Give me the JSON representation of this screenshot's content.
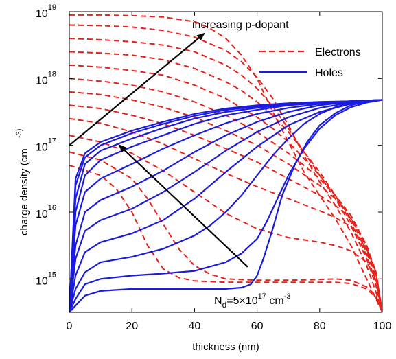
{
  "chart_data": {
    "type": "line",
    "xlabel": "thickness (nm)",
    "ylabel": "charge density (cm",
    "ylabel_exponent": "-3)",
    "xlim": [
      0,
      100
    ],
    "ylim_log10": [
      14.5,
      19
    ],
    "yscale": "log",
    "grid": false,
    "legend_position": "top-right",
    "x_ticks": [
      "0",
      "20",
      "40",
      "60",
      "80",
      "100"
    ],
    "y_ticks": [
      {
        "base": "10",
        "exp": "15",
        "value": 15
      },
      {
        "base": "10",
        "exp": "16",
        "value": 16
      },
      {
        "base": "10",
        "exp": "17",
        "value": 17
      },
      {
        "base": "10",
        "exp": "18",
        "value": 18
      },
      {
        "base": "10",
        "exp": "19",
        "value": 19
      }
    ],
    "legend": [
      {
        "label": "Electrons",
        "color": "#e8201a",
        "style": "dashed"
      },
      {
        "label": "Holes",
        "color": "#1a1ae0",
        "style": "solid"
      }
    ],
    "annotation_p_dopant": "increasing p-dopant",
    "annotation_nd": {
      "a": "N",
      "sub": "d",
      "b": "=5×10",
      "sup1": "17",
      "c": " cm",
      "sup2": "-3"
    },
    "colors": {
      "electrons": "#e8201a",
      "holes": "#1a1ae0",
      "arrows": "#000000"
    },
    "electron_series": [
      {
        "x": [
          0,
          10,
          20,
          30,
          40,
          45,
          50,
          55,
          60,
          65,
          70,
          75,
          80,
          85,
          90,
          95,
          98,
          100
        ],
        "log10_n": [
          18.95,
          18.95,
          18.94,
          18.92,
          18.85,
          18.75,
          18.6,
          18.35,
          18.0,
          17.5,
          17.05,
          16.6,
          16.25,
          15.9,
          15.5,
          15.0,
          14.7,
          14.5
        ]
      },
      {
        "x": [
          0,
          10,
          20,
          30,
          40,
          50,
          55,
          60,
          65,
          70,
          75,
          80,
          85,
          90,
          95,
          98,
          100
        ],
        "log10_n": [
          18.8,
          18.79,
          18.77,
          18.72,
          18.62,
          18.42,
          18.25,
          18.02,
          17.7,
          17.3,
          16.85,
          16.45,
          16.1,
          15.7,
          15.2,
          14.8,
          14.5
        ]
      },
      {
        "x": [
          0,
          10,
          20,
          30,
          40,
          50,
          55,
          60,
          65,
          70,
          75,
          80,
          85,
          90,
          95,
          98,
          100
        ],
        "log10_n": [
          18.6,
          18.58,
          18.55,
          18.5,
          18.4,
          18.2,
          18.05,
          17.85,
          17.58,
          17.25,
          16.9,
          16.55,
          16.2,
          15.8,
          15.3,
          14.9,
          14.5
        ]
      },
      {
        "x": [
          0,
          10,
          20,
          30,
          40,
          50,
          55,
          60,
          65,
          70,
          75,
          80,
          85,
          90,
          95,
          98,
          100
        ],
        "log10_n": [
          18.4,
          18.38,
          18.35,
          18.28,
          18.15,
          17.95,
          17.82,
          17.65,
          17.45,
          17.2,
          16.9,
          16.6,
          16.25,
          15.85,
          15.35,
          14.95,
          14.5
        ]
      },
      {
        "x": [
          0,
          10,
          20,
          30,
          40,
          50,
          60,
          65,
          70,
          75,
          80,
          85,
          90,
          95,
          98,
          100
        ],
        "log10_n": [
          18.2,
          18.17,
          18.12,
          18.05,
          17.9,
          17.7,
          17.42,
          17.25,
          17.05,
          16.8,
          16.55,
          16.25,
          15.9,
          15.4,
          15.0,
          14.5
        ]
      },
      {
        "x": [
          0,
          10,
          20,
          30,
          40,
          50,
          60,
          70,
          75,
          80,
          85,
          90,
          95,
          98,
          100
        ],
        "log10_n": [
          18.0,
          17.96,
          17.9,
          17.8,
          17.65,
          17.45,
          17.2,
          16.88,
          16.7,
          16.5,
          16.25,
          15.95,
          15.45,
          15.05,
          14.5
        ]
      },
      {
        "x": [
          0,
          10,
          20,
          30,
          40,
          50,
          60,
          70,
          80,
          85,
          90,
          95,
          98,
          100
        ],
        "log10_n": [
          17.8,
          17.76,
          17.68,
          17.57,
          17.42,
          17.22,
          17.0,
          16.72,
          16.4,
          16.2,
          15.95,
          15.5,
          15.1,
          14.5
        ]
      },
      {
        "x": [
          0,
          10,
          20,
          30,
          40,
          50,
          60,
          70,
          80,
          85,
          90,
          95,
          98,
          100
        ],
        "log10_n": [
          17.6,
          17.55,
          17.45,
          17.32,
          17.15,
          16.95,
          16.75,
          16.5,
          16.25,
          16.1,
          15.9,
          15.5,
          15.1,
          14.5
        ]
      },
      {
        "x": [
          0,
          10,
          20,
          30,
          40,
          50,
          60,
          70,
          80,
          85,
          90,
          95,
          98,
          100
        ],
        "log10_n": [
          17.4,
          17.33,
          17.2,
          17.02,
          16.8,
          16.58,
          16.38,
          16.2,
          16.02,
          15.92,
          15.78,
          15.45,
          15.1,
          14.5
        ]
      },
      {
        "x": [
          0,
          10,
          20,
          30,
          40,
          50,
          60,
          70,
          80,
          85,
          90,
          95,
          98,
          100
        ],
        "log10_n": [
          17.15,
          17.05,
          16.88,
          16.62,
          16.3,
          15.98,
          15.75,
          15.62,
          15.55,
          15.5,
          15.42,
          15.25,
          15.0,
          14.5
        ]
      },
      {
        "x": [
          0,
          10,
          20,
          25,
          30,
          35,
          40,
          45,
          50,
          60,
          70,
          80,
          85,
          90,
          95,
          98,
          100
        ],
        "log10_n": [
          16.9,
          16.78,
          16.5,
          16.2,
          15.82,
          15.45,
          15.2,
          15.07,
          15.0,
          14.98,
          14.98,
          14.99,
          15.0,
          14.98,
          14.88,
          14.75,
          14.5
        ]
      },
      {
        "x": [
          0,
          10,
          15,
          20,
          25,
          30,
          35,
          40,
          50,
          60,
          70,
          80,
          85,
          90,
          95,
          98,
          100
        ],
        "log10_n": [
          16.7,
          16.55,
          16.35,
          16.0,
          15.5,
          15.15,
          15.02,
          14.97,
          14.95,
          14.95,
          14.95,
          14.95,
          14.95,
          14.93,
          14.85,
          14.72,
          14.5
        ]
      }
    ],
    "hole_series": [
      {
        "x": [
          0,
          2,
          5,
          10,
          20,
          30,
          40,
          50,
          60,
          70,
          80,
          90,
          100
        ],
        "log10_p": [
          14.5,
          16.5,
          16.88,
          17.05,
          17.22,
          17.35,
          17.47,
          17.55,
          17.6,
          17.63,
          17.65,
          17.66,
          17.68
        ]
      },
      {
        "x": [
          0,
          2,
          5,
          10,
          20,
          30,
          40,
          50,
          60,
          70,
          80,
          90,
          100
        ],
        "log10_p": [
          14.5,
          16.4,
          16.82,
          17.0,
          17.18,
          17.32,
          17.44,
          17.53,
          17.58,
          17.62,
          17.64,
          17.66,
          17.68
        ]
      },
      {
        "x": [
          0,
          2,
          5,
          10,
          20,
          30,
          40,
          50,
          60,
          70,
          80,
          90,
          100
        ],
        "log10_p": [
          14.5,
          16.2,
          16.72,
          16.92,
          17.1,
          17.26,
          17.4,
          17.5,
          17.56,
          17.61,
          17.64,
          17.66,
          17.68
        ]
      },
      {
        "x": [
          0,
          2,
          5,
          10,
          20,
          30,
          40,
          50,
          60,
          70,
          80,
          90,
          100
        ],
        "log10_p": [
          14.5,
          16.0,
          16.55,
          16.78,
          16.98,
          17.15,
          17.32,
          17.45,
          17.53,
          17.6,
          17.63,
          17.66,
          17.68
        ]
      },
      {
        "x": [
          0,
          2,
          5,
          10,
          20,
          30,
          40,
          50,
          60,
          70,
          80,
          90,
          100
        ],
        "log10_p": [
          14.5,
          15.8,
          16.3,
          16.5,
          16.72,
          16.95,
          17.15,
          17.33,
          17.47,
          17.56,
          17.62,
          17.65,
          17.68
        ]
      },
      {
        "x": [
          0,
          2,
          5,
          10,
          20,
          30,
          40,
          50,
          60,
          70,
          80,
          90,
          100
        ],
        "log10_p": [
          14.5,
          15.5,
          16.0,
          16.18,
          16.38,
          16.62,
          16.9,
          17.15,
          17.35,
          17.5,
          17.6,
          17.65,
          17.68
        ]
      },
      {
        "x": [
          0,
          2,
          5,
          10,
          20,
          30,
          40,
          50,
          60,
          70,
          80,
          90,
          100
        ],
        "log10_p": [
          14.5,
          15.3,
          15.72,
          15.88,
          16.05,
          16.3,
          16.6,
          16.92,
          17.2,
          17.42,
          17.56,
          17.64,
          17.68
        ]
      },
      {
        "x": [
          0,
          2,
          5,
          10,
          20,
          30,
          40,
          50,
          60,
          70,
          80,
          90,
          100
        ],
        "log10_p": [
          14.5,
          15.05,
          15.4,
          15.55,
          15.68,
          15.88,
          16.2,
          16.6,
          16.98,
          17.3,
          17.5,
          17.62,
          17.68
        ]
      },
      {
        "x": [
          0,
          2,
          5,
          10,
          20,
          30,
          40,
          45,
          50,
          55,
          60,
          65,
          70,
          75,
          80,
          85,
          90,
          95,
          100
        ],
        "log10_p": [
          14.5,
          14.85,
          15.1,
          15.25,
          15.33,
          15.45,
          15.65,
          15.8,
          16.0,
          16.25,
          16.55,
          16.85,
          17.1,
          17.32,
          17.47,
          17.57,
          17.63,
          17.66,
          17.68
        ]
      },
      {
        "x": [
          0,
          2,
          5,
          10,
          20,
          30,
          40,
          50,
          55,
          60,
          63,
          66,
          70,
          75,
          80,
          85,
          90,
          95,
          100
        ],
        "log10_p": [
          14.5,
          14.7,
          14.92,
          15.0,
          15.05,
          15.08,
          15.12,
          15.25,
          15.38,
          15.6,
          15.85,
          16.15,
          16.55,
          16.95,
          17.25,
          17.45,
          17.57,
          17.64,
          17.68
        ]
      },
      {
        "x": [
          0,
          2,
          5,
          10,
          20,
          30,
          40,
          50,
          55,
          58,
          60,
          62,
          65,
          68,
          72,
          76,
          80,
          85,
          90,
          95,
          100
        ],
        "log10_p": [
          14.5,
          14.6,
          14.75,
          14.82,
          14.85,
          14.85,
          14.85,
          14.85,
          14.87,
          14.92,
          15.05,
          15.3,
          15.75,
          16.25,
          16.7,
          17.05,
          17.3,
          17.48,
          17.6,
          17.66,
          17.68
        ]
      }
    ],
    "arrows": [
      {
        "from": [
          0,
          17.0
        ],
        "to": [
          43,
          18.67
        ],
        "annotates": "increasing p-dopant"
      },
      {
        "from": [
          57,
          15.18
        ],
        "to": [
          16,
          17.0
        ],
        "annotates": "increasing p-dopant"
      }
    ]
  }
}
